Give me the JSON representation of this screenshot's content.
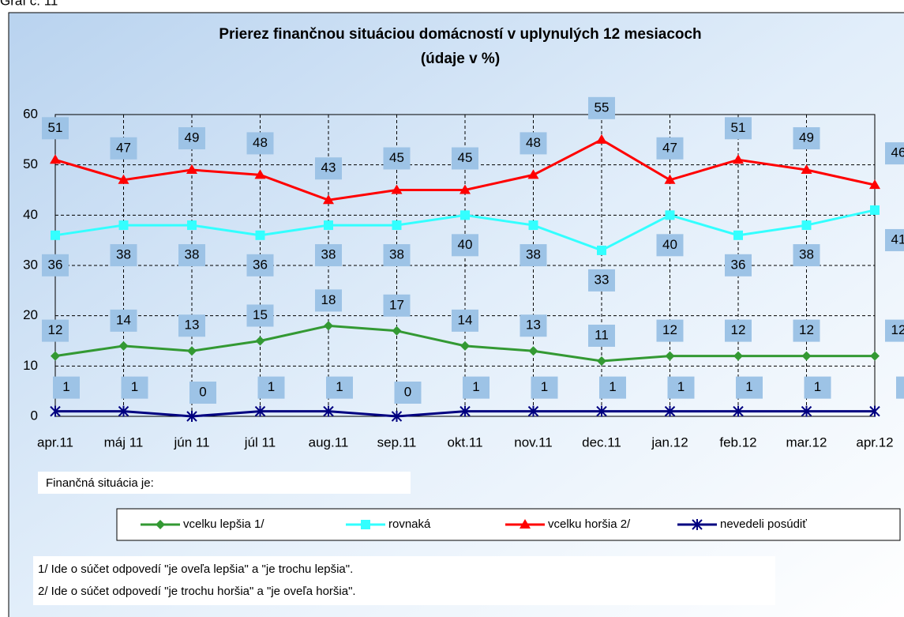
{
  "chart_data": {
    "type": "line",
    "caption": "Graf č. 11",
    "title": "Prierez finančnou  situáciou domácností  v uplynulých 12 mesiacoch",
    "subtitle": "(údaje v %)",
    "categories": [
      "apr.11",
      "máj 11",
      "jún 11",
      "júl 11",
      "aug.11",
      "sep.11",
      "okt.11",
      "nov.11",
      "dec.11",
      "jan.12",
      "feb.12",
      "mar.12",
      "apr.12"
    ],
    "series": [
      {
        "name": "vcelku lepšia 1/",
        "color": "#339933",
        "marker": "diamond",
        "values": [
          12,
          14,
          13,
          15,
          18,
          17,
          14,
          13,
          11,
          12,
          12,
          12,
          12
        ]
      },
      {
        "name": "rovnaká",
        "color": "#33ffff",
        "marker": "square",
        "values": [
          36,
          38,
          38,
          36,
          38,
          38,
          40,
          38,
          33,
          40,
          36,
          38,
          41
        ]
      },
      {
        "name": "vcelku horšia 2/",
        "color": "#ff0000",
        "marker": "triangle",
        "values": [
          51,
          47,
          49,
          48,
          43,
          45,
          45,
          48,
          55,
          47,
          51,
          49,
          46
        ]
      },
      {
        "name": "nevedeli posúdiť",
        "color": "#000080",
        "marker": "star",
        "values": [
          1,
          1,
          0,
          1,
          1,
          0,
          1,
          1,
          1,
          1,
          1,
          1,
          1
        ]
      }
    ],
    "ylim": [
      0,
      60
    ],
    "yticks": [
      0,
      10,
      20,
      30,
      40,
      50,
      60
    ],
    "grid": true,
    "legend_title": "Finančná situácia je:",
    "legend": "bottom",
    "notes": [
      "1/ Ide o súčet odpovedí \"je oveľa lepšia\" a \"je trochu lepšia\".",
      "2/ Ide o súčet odpovedí \"je trochu horšia\" a \"je oveľa horšia\"."
    ]
  }
}
